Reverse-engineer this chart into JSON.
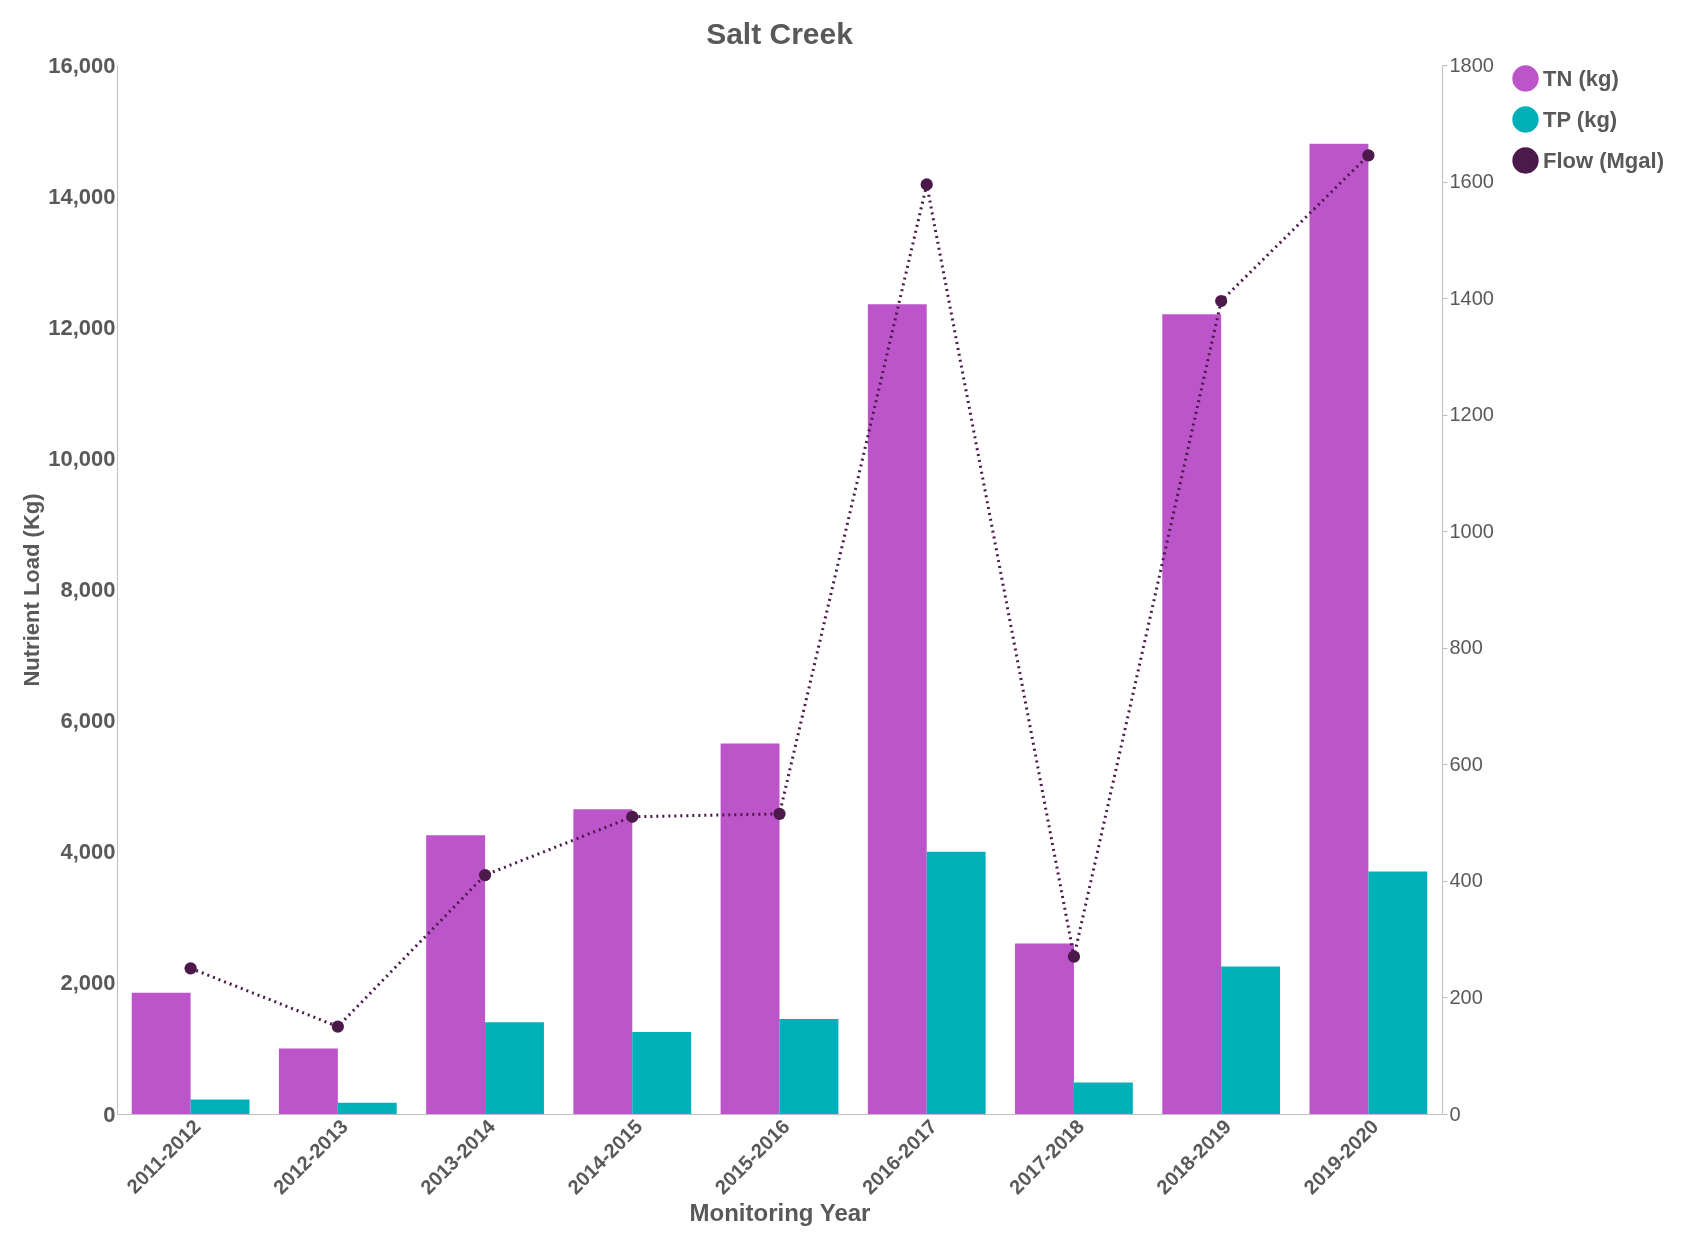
{
  "chart_data": {
    "type": "bar",
    "title": "Salt Creek",
    "xlabel": "Monitoring Year",
    "ylabel": "Nutrient Load (Kg)",
    "categories": [
      "2011-2012",
      "2012-2013",
      "2013-2014",
      "2014-2015",
      "2015-2016",
      "2016-2017",
      "2017-2018",
      "2018-2019",
      "2019-2020"
    ],
    "series": [
      {
        "name": "TN (kg)",
        "color": "#bb55c9",
        "values": [
          1850,
          1000,
          4250,
          4650,
          5650,
          12350,
          2600,
          12200,
          14800
        ]
      },
      {
        "name": "TP (kg)",
        "color": "#00b0b9",
        "values": [
          220,
          170,
          1400,
          1250,
          1450,
          4000,
          480,
          2250,
          3700
        ]
      },
      {
        "name": "Flow (Mgal)",
        "type": "line",
        "axis": "y2",
        "color": "#4b1a4a",
        "marker": "circle",
        "line_style": "dotted",
        "values": [
          250,
          150,
          410,
          510,
          515,
          1595,
          270,
          1395,
          1645
        ]
      }
    ],
    "ylim": [
      0,
      16000
    ],
    "yticks": [
      0,
      {
        "value": 2000,
        "label": "2,000"
      },
      {
        "value": 4000,
        "label": "4,000"
      },
      {
        "value": 6000,
        "label": "6,000"
      },
      {
        "value": 8000,
        "label": "8,000"
      },
      {
        "value": 10000,
        "label": "10,000"
      },
      {
        "value": 12000,
        "label": "12,000"
      },
      {
        "value": 14000,
        "label": "14,000"
      },
      {
        "value": 16000,
        "label": "16,000"
      }
    ],
    "y2lim": [
      0,
      1800
    ],
    "y2ticks": [
      0,
      200,
      400,
      600,
      800,
      1000,
      1200,
      1400,
      1600,
      1800
    ],
    "grid": false,
    "legend": "right"
  }
}
